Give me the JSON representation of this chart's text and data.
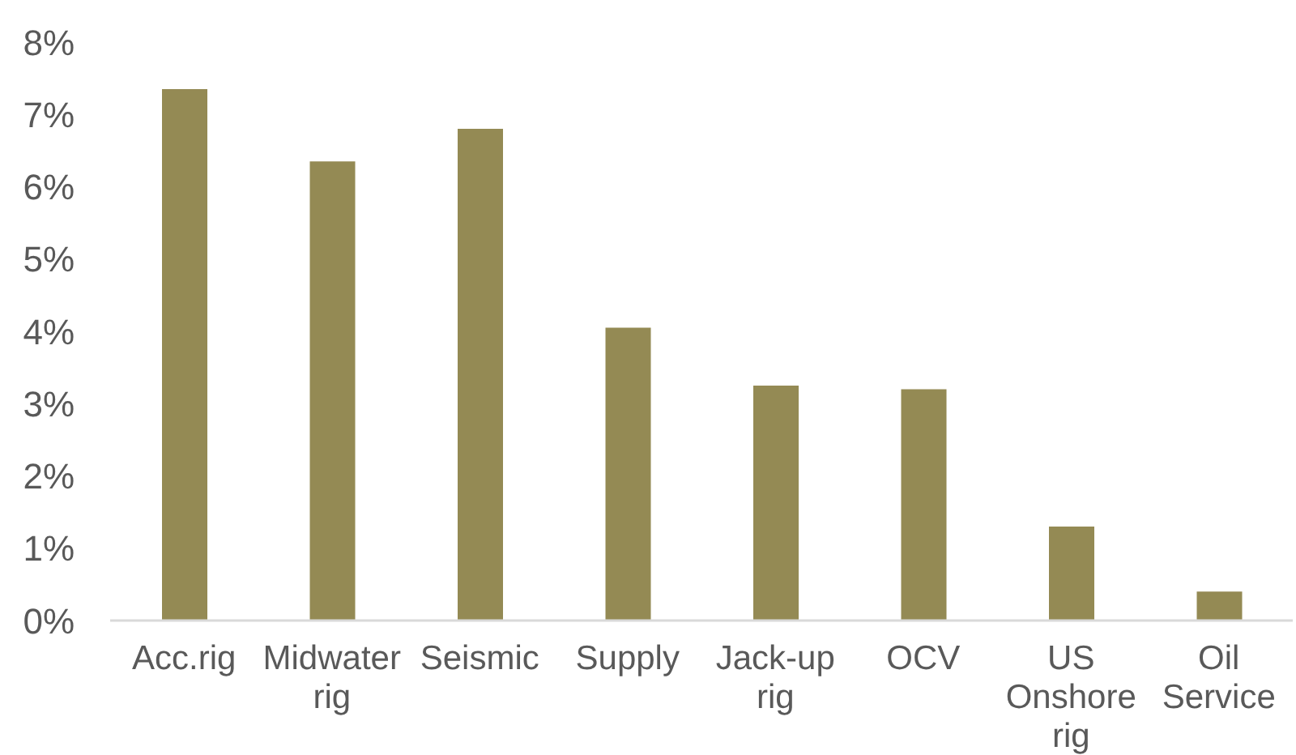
{
  "chart_data": {
    "type": "bar",
    "categories": [
      "Acc.rig",
      "Midwater rig",
      "Seismic",
      "Supply",
      "Jack-up rig",
      "OCV",
      "US Onshore rig",
      "Oil Service"
    ],
    "values": [
      7.35,
      6.35,
      6.8,
      4.05,
      3.25,
      3.2,
      1.3,
      0.4
    ],
    "color": "#948a54",
    "ylim": [
      0,
      8
    ],
    "yticks": [
      {
        "value": 0,
        "label": "0%"
      },
      {
        "value": 1,
        "label": "1%"
      },
      {
        "value": 2,
        "label": "2%"
      },
      {
        "value": 3,
        "label": "3%"
      },
      {
        "value": 4,
        "label": "4%"
      },
      {
        "value": 5,
        "label": "5%"
      },
      {
        "value": 6,
        "label": "6%"
      },
      {
        "value": 7,
        "label": "7%"
      },
      {
        "value": 8,
        "label": "8%"
      }
    ]
  }
}
